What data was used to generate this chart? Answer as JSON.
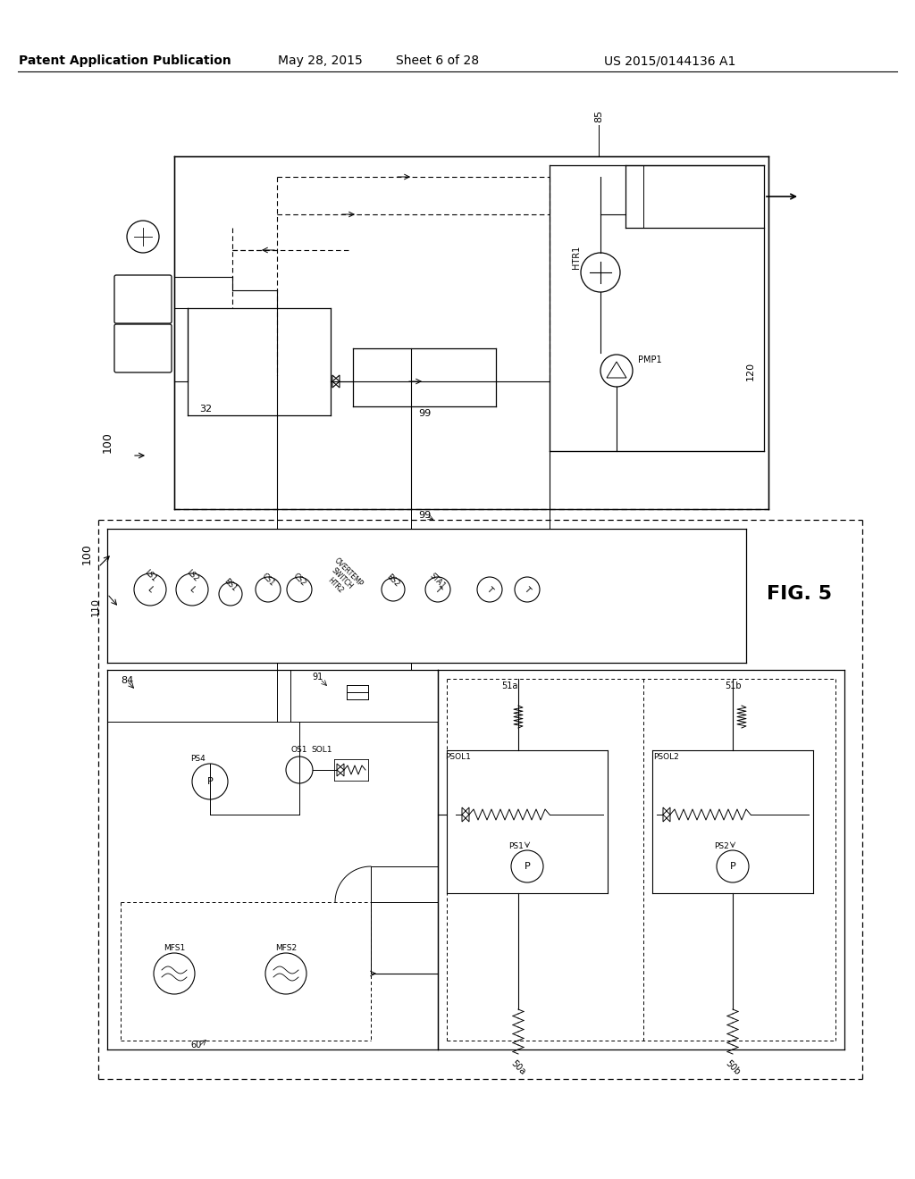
{
  "title": "Patent Application Publication",
  "date": "May 28, 2015",
  "sheet": "Sheet 6 of 28",
  "patent_num": "US 2015/0144136 A1",
  "fig_label": "FIG. 5",
  "bg_color": "#ffffff",
  "line_color": "#000000",
  "header_fontsize": 10,
  "label_fontsize": 8,
  "fig_label_fontsize": 16
}
